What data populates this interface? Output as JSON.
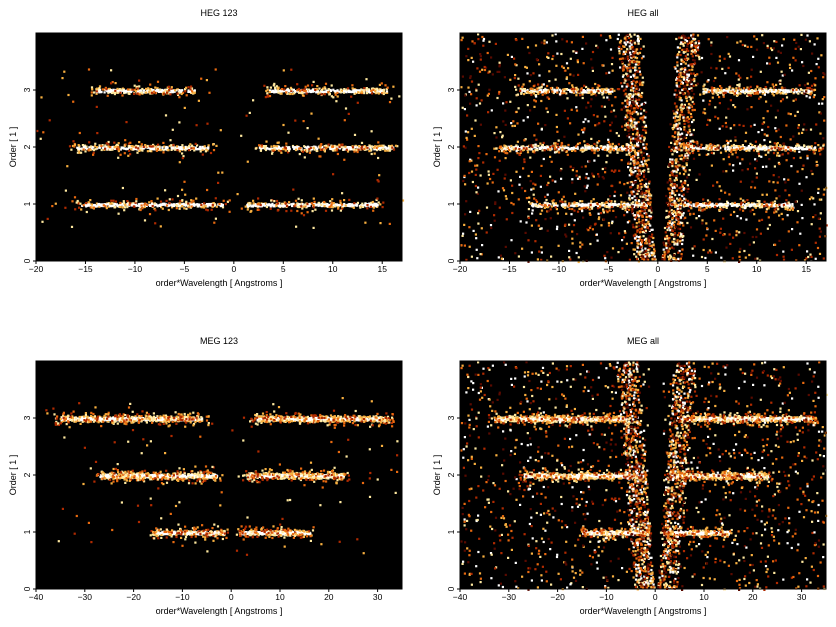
{
  "chart_data": [
    {
      "type": "heatmap",
      "title": "HEG 123",
      "xlabel": "order*Wavelength [ Angstroms ]",
      "ylabel": "Order [ 1 ]",
      "xlim": [
        -20,
        17
      ],
      "ylim": [
        0,
        4
      ],
      "xticks": [
        -20,
        -15,
        -10,
        -5,
        0,
        5,
        10,
        15
      ],
      "yticks": [
        0,
        1,
        2,
        3
      ],
      "background": "#000000",
      "colormap": [
        "#000000",
        "#5a0a00",
        "#b02a00",
        "#e86a10",
        "#f8b040",
        "#ffe9a0",
        "#ffffff"
      ],
      "bands": [
        {
          "order": 1,
          "segments": [
            [
              -15.5,
              -1.2
            ],
            [
              1.2,
              14.5
            ]
          ]
        },
        {
          "order": 2,
          "segments": [
            [
              -16,
              -2.5
            ],
            [
              2.5,
              16
            ]
          ]
        },
        {
          "order": 3,
          "segments": [
            [
              -14,
              -4
            ],
            [
              3.5,
              15.5
            ]
          ]
        }
      ],
      "diagonal_wings": false
    },
    {
      "type": "heatmap",
      "title": "HEG all",
      "xlabel": "order*Wavelength [ Angstroms ]",
      "ylabel": "Order [ 1 ]",
      "xlim": [
        -20,
        17
      ],
      "ylim": [
        0,
        4
      ],
      "xticks": [
        -20,
        -15,
        -10,
        -5,
        0,
        5,
        10,
        15
      ],
      "yticks": [
        0,
        1,
        2,
        3
      ],
      "background": "#000000",
      "colormap": [
        "#000000",
        "#5a0a00",
        "#b02a00",
        "#e86a10",
        "#f8b040",
        "#ffe9a0",
        "#ffffff"
      ],
      "bands": [
        {
          "order": 1,
          "segments": [
            [
              -13,
              -1.2
            ],
            [
              1.2,
              13.5
            ]
          ]
        },
        {
          "order": 2,
          "segments": [
            [
              -16,
              -2.5
            ],
            [
              2.5,
              16
            ]
          ]
        },
        {
          "order": 3,
          "segments": [
            [
              -14,
              -4.5
            ],
            [
              4.5,
              15.5
            ]
          ]
        }
      ],
      "diagonal_wings": true
    },
    {
      "type": "heatmap",
      "title": "MEG 123",
      "xlabel": "order*Wavelength [ Angstroms ]",
      "ylabel": "Order [ 1 ]",
      "xlim": [
        -40,
        35
      ],
      "ylim": [
        0,
        4
      ],
      "xticks": [
        -40,
        -30,
        -20,
        -10,
        0,
        10,
        20,
        30
      ],
      "yticks": [
        0,
        1,
        2,
        3
      ],
      "background": "#000000",
      "colormap": [
        "#000000",
        "#5a0a00",
        "#b02a00",
        "#e86a10",
        "#f8b040",
        "#ffe9a0",
        "#ffffff"
      ],
      "bands": [
        {
          "order": 1,
          "segments": [
            [
              -16,
              -1.5
            ],
            [
              1.5,
              16
            ]
          ]
        },
        {
          "order": 2,
          "segments": [
            [
              -27,
              -3
            ],
            [
              3,
              23
            ]
          ]
        },
        {
          "order": 3,
          "segments": [
            [
              -35,
              -6
            ],
            [
              5,
              32
            ]
          ]
        }
      ],
      "diagonal_wings": false
    },
    {
      "type": "heatmap",
      "title": "MEG all",
      "xlabel": "order*Wavelength [ Angstroms ]",
      "ylabel": "Order [ 1 ]",
      "xlim": [
        -40,
        35
      ],
      "ylim": [
        0,
        4
      ],
      "xticks": [
        -40,
        -30,
        -20,
        -10,
        0,
        10,
        20,
        30
      ],
      "yticks": [
        0,
        1,
        2,
        3
      ],
      "background": "#000000",
      "colormap": [
        "#000000",
        "#5a0a00",
        "#b02a00",
        "#e86a10",
        "#f8b040",
        "#ffe9a0",
        "#ffffff"
      ],
      "bands": [
        {
          "order": 1,
          "segments": [
            [
              -15,
              -1.5
            ],
            [
              1.5,
              15
            ]
          ]
        },
        {
          "order": 2,
          "segments": [
            [
              -27,
              -3
            ],
            [
              3,
              23
            ]
          ]
        },
        {
          "order": 3,
          "segments": [
            [
              -33,
              -6
            ],
            [
              5,
              32
            ]
          ]
        }
      ],
      "diagonal_wings": true
    }
  ]
}
